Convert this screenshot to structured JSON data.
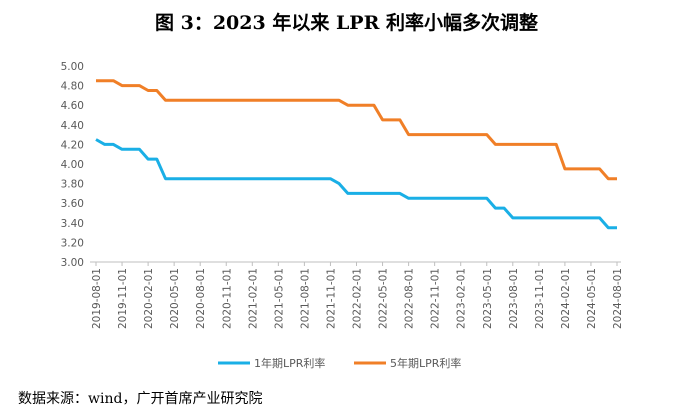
{
  "title": "图 3：2023 年以来 LPR 利率小幅多次调整",
  "source": "数据来源：wind，广开首席产业研究院",
  "chart_data": {
    "type": "line",
    "title": "图 3：2023 年以来 LPR 利率小幅多次调整",
    "xlabel": "",
    "ylabel": "",
    "ylim": [
      3.0,
      5.0
    ],
    "yticks": [
      "3.00",
      "3.20",
      "3.40",
      "3.60",
      "3.80",
      "4.00",
      "4.20",
      "4.40",
      "4.60",
      "4.80",
      "5.00"
    ],
    "xticks": [
      "2019-08-01",
      "2019-11-01",
      "2020-02-01",
      "2020-05-01",
      "2020-08-01",
      "2020-11-01",
      "2021-02-01",
      "2021-05-01",
      "2021-08-01",
      "2021-11-01",
      "2022-02-01",
      "2022-05-01",
      "2022-08-01",
      "2022-11-01",
      "2023-02-01",
      "2023-05-01",
      "2023-08-01",
      "2023-11-01",
      "2024-02-01",
      "2024-05-01",
      "2024-08-01"
    ],
    "x_start": "2019-08",
    "x_end": "2024-08",
    "grid": false,
    "legend": "bottom",
    "series": [
      {
        "name": "1年期LPR利率",
        "color": "#1AAFE6",
        "values": [
          4.25,
          4.2,
          4.2,
          4.15,
          4.15,
          4.15,
          4.05,
          4.05,
          3.85,
          3.85,
          3.85,
          3.85,
          3.85,
          3.85,
          3.85,
          3.85,
          3.85,
          3.85,
          3.85,
          3.85,
          3.85,
          3.85,
          3.85,
          3.85,
          3.85,
          3.85,
          3.85,
          3.85,
          3.8,
          3.7,
          3.7,
          3.7,
          3.7,
          3.7,
          3.7,
          3.7,
          3.65,
          3.65,
          3.65,
          3.65,
          3.65,
          3.65,
          3.65,
          3.65,
          3.65,
          3.65,
          3.55,
          3.55,
          3.45,
          3.45,
          3.45,
          3.45,
          3.45,
          3.45,
          3.45,
          3.45,
          3.45,
          3.45,
          3.45,
          3.35,
          3.35
        ]
      },
      {
        "name": "5年期LPR利率",
        "color": "#F07F27",
        "values": [
          4.85,
          4.85,
          4.85,
          4.8,
          4.8,
          4.8,
          4.75,
          4.75,
          4.65,
          4.65,
          4.65,
          4.65,
          4.65,
          4.65,
          4.65,
          4.65,
          4.65,
          4.65,
          4.65,
          4.65,
          4.65,
          4.65,
          4.65,
          4.65,
          4.65,
          4.65,
          4.65,
          4.65,
          4.65,
          4.6,
          4.6,
          4.6,
          4.6,
          4.45,
          4.45,
          4.45,
          4.3,
          4.3,
          4.3,
          4.3,
          4.3,
          4.3,
          4.3,
          4.3,
          4.3,
          4.3,
          4.2,
          4.2,
          4.2,
          4.2,
          4.2,
          4.2,
          4.2,
          4.2,
          3.95,
          3.95,
          3.95,
          3.95,
          3.95,
          3.85,
          3.85
        ]
      }
    ]
  }
}
